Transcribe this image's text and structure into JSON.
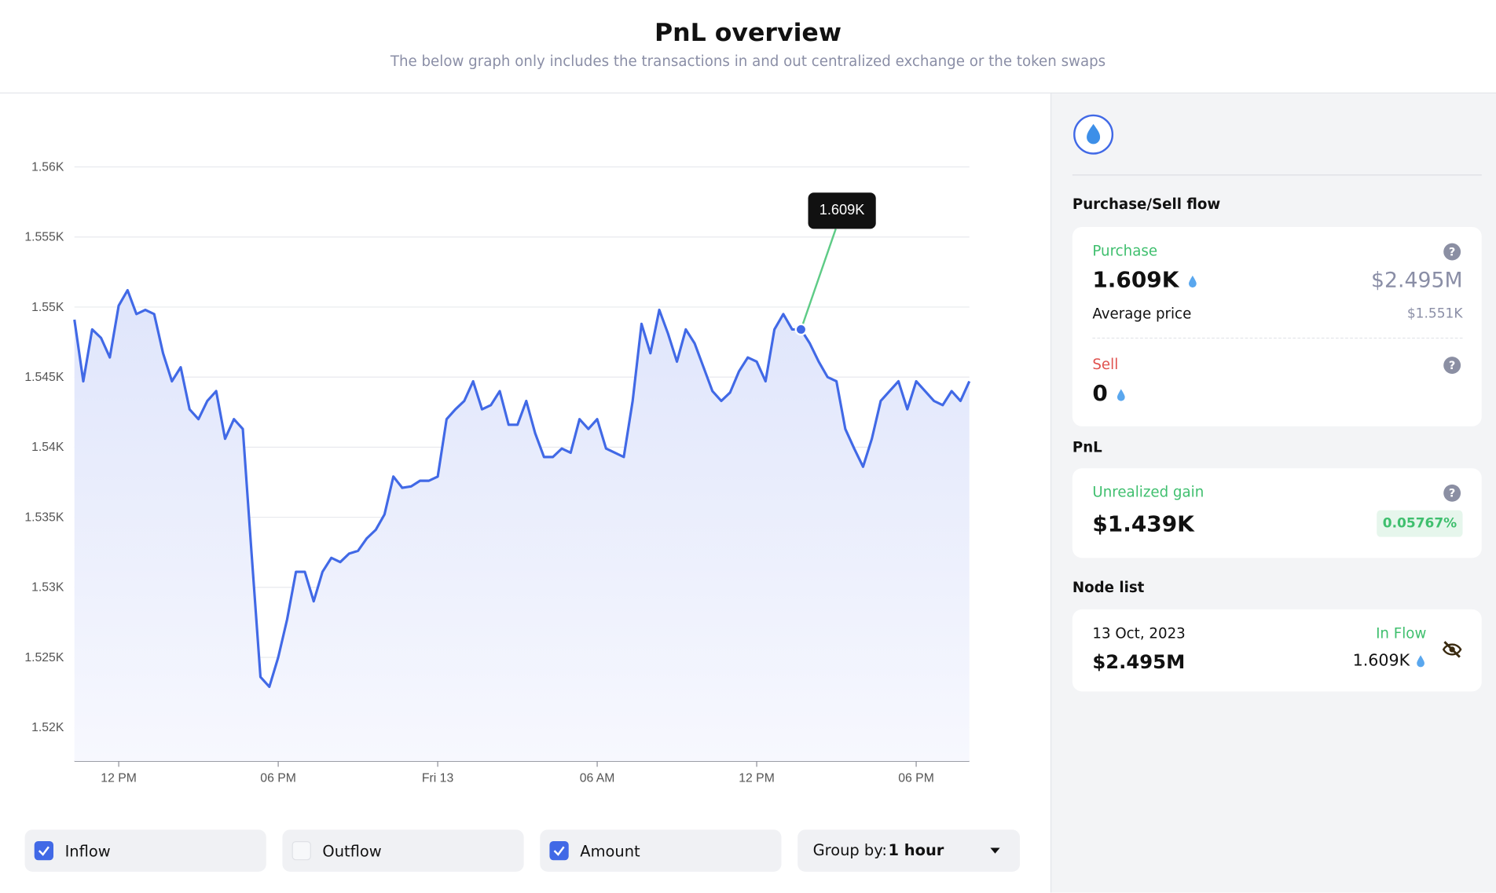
{
  "header": {
    "title": "PnL overview",
    "subtitle": "The below graph only includes the transactions in and out centralized exchange or the token swaps"
  },
  "chart_data": {
    "type": "line",
    "categories": [
      null,
      null,
      null,
      null,
      null,
      "12 PM",
      null,
      null,
      null,
      null,
      null,
      null,
      null,
      null,
      null,
      null,
      null,
      null,
      null,
      null,
      null,
      null,
      null,
      "06 PM",
      null,
      null,
      null,
      null,
      null,
      null,
      null,
      null,
      null,
      null,
      null,
      null,
      null,
      null,
      null,
      null,
      null,
      "Fri 13",
      null,
      null,
      null,
      null,
      null,
      null,
      null,
      null,
      null,
      null,
      null,
      null,
      null,
      null,
      null,
      null,
      null,
      "06 AM",
      null,
      null,
      null,
      null,
      null,
      null,
      null,
      null,
      null,
      null,
      null,
      null,
      null,
      null,
      null,
      null,
      null,
      "12 PM",
      null,
      null,
      null,
      null,
      null,
      null,
      null,
      null,
      null,
      null,
      null,
      null,
      null,
      null,
      null,
      null,
      null,
      "06 PM",
      null,
      null,
      null,
      null,
      null,
      null
    ],
    "series": [
      {
        "name": "Amount",
        "color": "#4169e6",
        "values": [
          1549.1,
          1544.7,
          1548.4,
          1547.8,
          1546.4,
          1550.1,
          1551.2,
          1549.5,
          1549.8,
          1549.5,
          1546.7,
          1544.7,
          1545.7,
          1542.7,
          1542.0,
          1543.3,
          1544.0,
          1540.6,
          1542.0,
          1541.3,
          1532.4,
          1523.6,
          1522.9,
          1525.0,
          1527.7,
          1531.1,
          1531.1,
          1529.0,
          1531.1,
          1532.1,
          1531.8,
          1532.4,
          1532.6,
          1533.5,
          1534.1,
          1535.2,
          1537.9,
          1537.1,
          1537.2,
          1537.6,
          1537.6,
          1537.9,
          1542.0,
          1542.7,
          1543.3,
          1544.7,
          1542.7,
          1543.0,
          1544.0,
          1541.6,
          1541.6,
          1543.3,
          1541.0,
          1539.3,
          1539.3,
          1539.9,
          1539.6,
          1542.0,
          1541.3,
          1542.0,
          1539.9,
          1539.6,
          1539.3,
          1543.3,
          1548.8,
          1546.7,
          1549.8,
          1548.1,
          1546.1,
          1548.4,
          1547.4,
          1545.7,
          1544.0,
          1543.3,
          1543.9,
          1545.4,
          1546.4,
          1546.1,
          1544.7,
          1548.4,
          1549.5,
          1548.4,
          1548.4,
          1547.4,
          1546.1,
          1545.0,
          1544.7,
          1541.3,
          1539.9,
          1538.6,
          1540.6,
          1543.3,
          1544.0,
          1544.7,
          1542.7,
          1544.7,
          1544.0,
          1543.3,
          1543.0,
          1544.0,
          1543.3,
          1544.7
        ]
      }
    ],
    "ylim": [
      1517.6,
      1560
    ],
    "yticks": [
      {
        "value": 1520,
        "label": "1.52K"
      },
      {
        "value": 1525,
        "label": "1.525K"
      },
      {
        "value": 1530,
        "label": "1.53K"
      },
      {
        "value": 1535,
        "label": "1.535K"
      },
      {
        "value": 1540,
        "label": "1.54K"
      },
      {
        "value": 1545,
        "label": "1.545K"
      },
      {
        "value": 1550,
        "label": "1.55K"
      },
      {
        "value": 1555,
        "label": "1.555K"
      },
      {
        "value": 1560,
        "label": "1.56K"
      }
    ],
    "grid": true,
    "tooltip": "1.609K"
  },
  "controls": {
    "filters": [
      {
        "label": "Inflow",
        "checked": true
      },
      {
        "label": "Outflow",
        "checked": false
      },
      {
        "label": "Amount",
        "checked": true
      }
    ],
    "group_by": {
      "label": "Group by:",
      "value": "1 hour"
    }
  },
  "sidebar": {
    "flow_title": "Purchase/Sell flow",
    "purchase": {
      "label": "Purchase",
      "amount": "1.609K",
      "usd": "$2.495M",
      "avg_label": "Average price",
      "avg_value": "$1.551K"
    },
    "sell": {
      "label": "Sell",
      "amount": "0"
    },
    "pnl_title": "PnL",
    "pnl": {
      "label": "Unrealized gain",
      "amount": "$1.439K",
      "change": "0.05767%"
    },
    "node_title": "Node list",
    "node": {
      "date": "13 Oct, 2023",
      "flow": "In Flow",
      "usd": "$2.495M",
      "amount": "1.609K"
    }
  }
}
